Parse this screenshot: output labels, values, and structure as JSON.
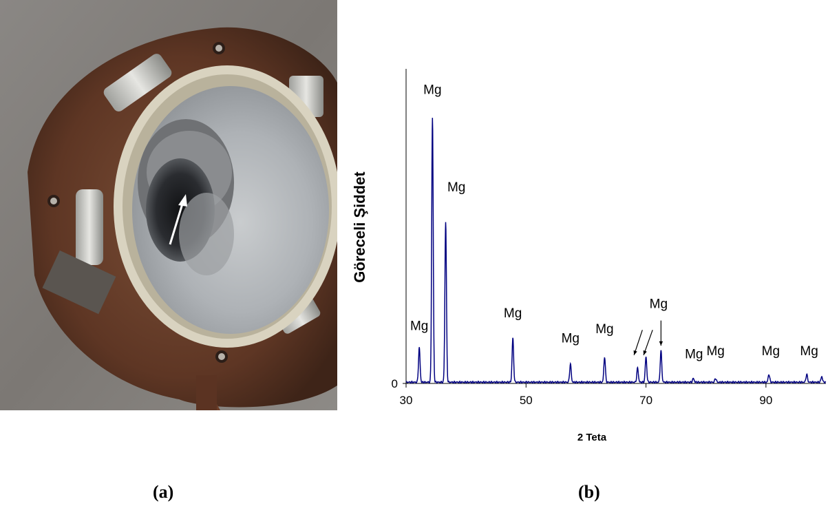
{
  "figure": {
    "panel_a_label": "(a)",
    "panel_b_label": "(b)"
  },
  "photo": {
    "subject": "crucible-with-magnesium-deposit",
    "arrow_icon": "white-arrow-icon"
  },
  "chart_data": {
    "type": "line",
    "title": "",
    "xlabel": "2 Teta",
    "ylabel": "Göreceli Şiddet",
    "xlim": [
      30,
      100
    ],
    "xticks": [
      30,
      50,
      70,
      90
    ],
    "yticks": [
      0
    ],
    "series_color": "#000080",
    "grid": false,
    "legend": "none",
    "peaks": [
      {
        "x": 32.2,
        "y": 0.11
      },
      {
        "x": 34.4,
        "y": 0.84
      },
      {
        "x": 36.6,
        "y": 0.51
      },
      {
        "x": 47.8,
        "y": 0.14
      },
      {
        "x": 57.4,
        "y": 0.058
      },
      {
        "x": 63.1,
        "y": 0.08
      },
      {
        "x": 68.6,
        "y": 0.045
      },
      {
        "x": 70.0,
        "y": 0.08
      },
      {
        "x": 72.5,
        "y": 0.1
      },
      {
        "x": 77.9,
        "y": 0.012
      },
      {
        "x": 81.6,
        "y": 0.012
      },
      {
        "x": 90.5,
        "y": 0.025
      },
      {
        "x": 96.8,
        "y": 0.025
      },
      {
        "x": 99.3,
        "y": 0.018
      }
    ],
    "annotations": [
      {
        "text": "Mg",
        "x": 32.2,
        "y": 0.17
      },
      {
        "text": "Mg",
        "x": 34.4,
        "y": 0.92
      },
      {
        "text": "Mg",
        "x": 38.4,
        "y": 0.61
      },
      {
        "text": "Mg",
        "x": 47.8,
        "y": 0.21
      },
      {
        "text": "Mg",
        "x": 57.4,
        "y": 0.13
      },
      {
        "text": "Mg",
        "x": 63.1,
        "y": 0.16
      },
      {
        "text": "Mg",
        "x": 72.1,
        "y": 0.24
      },
      {
        "text": "Mg",
        "x": 78.0,
        "y": 0.08
      },
      {
        "text": "Mg",
        "x": 81.6,
        "y": 0.09
      },
      {
        "text": "Mg",
        "x": 90.8,
        "y": 0.09
      },
      {
        "text": "Mg",
        "x": 97.2,
        "y": 0.09
      }
    ],
    "arrows": [
      {
        "from": [
          69.4,
          0.17
        ],
        "to": [
          68.0,
          0.09
        ]
      },
      {
        "from": [
          71.1,
          0.17
        ],
        "to": [
          69.6,
          0.09
        ]
      },
      {
        "from": [
          72.5,
          0.2
        ],
        "to": [
          72.5,
          0.12
        ]
      }
    ]
  }
}
